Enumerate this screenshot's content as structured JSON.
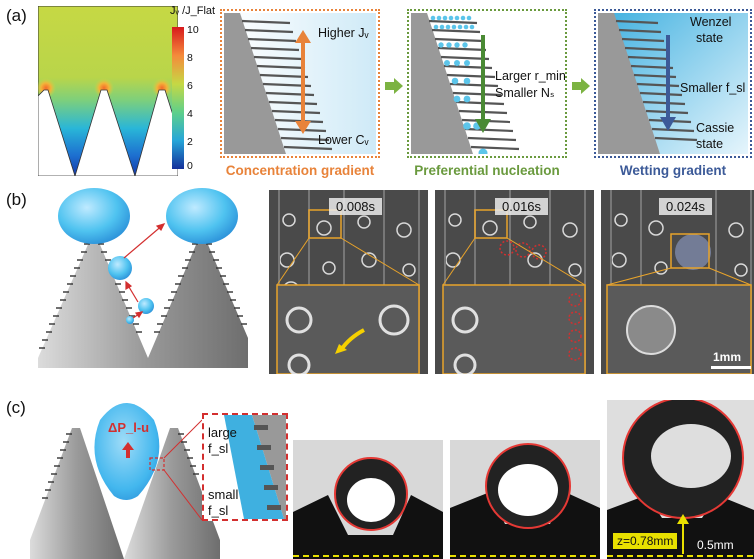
{
  "panel_labels": {
    "a": "(a)",
    "b": "(b)",
    "c": "(c)"
  },
  "panel_a": {
    "colorbar_label": "Jᵥ /J_Flat",
    "colorbar_ticks": [
      "10",
      "8",
      "6",
      "4",
      "2",
      "0"
    ],
    "colors": {
      "orange": "#e8833a",
      "green": "#6a9a3e",
      "blue": "#3c5a98",
      "arrow_green": "#7cb342"
    },
    "box1": {
      "title": "Concentration gradient",
      "top_text": "Higher Jᵥ",
      "bottom_text": "Lower Cᵥ"
    },
    "box2": {
      "title": "Preferential nucleation",
      "text_line1": "Larger r_min",
      "text_line2": "Smaller Nₛ"
    },
    "box3": {
      "title": "Wetting gradient",
      "top_text1": "Wenzel",
      "top_text2": "state",
      "mid_text": "Smaller f_sl",
      "bottom_text1": "Cassie",
      "bottom_text2": "state"
    }
  },
  "panel_b": {
    "timestamps": [
      "0.008s",
      "0.016s",
      "0.024s"
    ],
    "scale_bar": "1mm"
  },
  "panel_c": {
    "pressure_label": "ΔP_l-u",
    "inset_top1": "large",
    "inset_top2": "f_sl",
    "inset_bottom1": "small",
    "inset_bottom2": "f_sl",
    "height_label": "z=0.78mm",
    "scale_bar": "0.5mm"
  }
}
